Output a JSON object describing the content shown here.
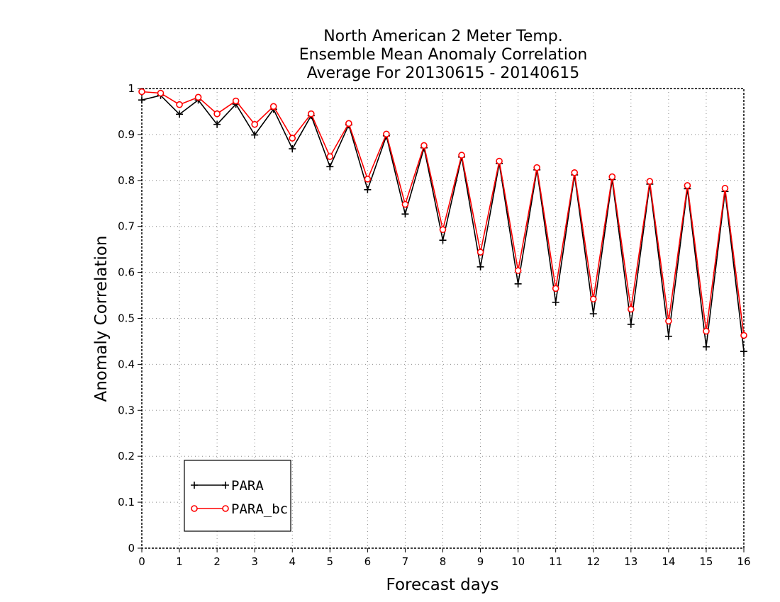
{
  "chart_data": {
    "type": "line",
    "title": [
      "North American 2 Meter Temp.",
      "Ensemble Mean Anomaly Correlation",
      "Average For 20130615 - 20140615"
    ],
    "xlabel": "Forecast days",
    "ylabel": "Anomaly Correlation",
    "xlim": [
      0,
      16
    ],
    "ylim": [
      0,
      1
    ],
    "x_ticks": [
      "0",
      "1",
      "2",
      "3",
      "4",
      "5",
      "6",
      "7",
      "8",
      "9",
      "10",
      "11",
      "12",
      "13",
      "14",
      "15",
      "16"
    ],
    "y_ticks": [
      "0",
      "0.1",
      "0.2",
      "0.3",
      "0.4",
      "0.5",
      "0.6",
      "0.7",
      "0.8",
      "0.9",
      "1"
    ],
    "grid": true,
    "legend_position": "bottom-left",
    "x": [
      0,
      0.5,
      1,
      1.5,
      2,
      2.5,
      3,
      3.5,
      4,
      4.5,
      5,
      5.5,
      6,
      6.5,
      7,
      7.5,
      8,
      8.5,
      9,
      9.5,
      10,
      10.5,
      11,
      11.5,
      12,
      12.5,
      13,
      13.5,
      14,
      14.5,
      15,
      15.5,
      16
    ],
    "series": [
      {
        "name": "PARA",
        "color": "#000000",
        "marker": "plus",
        "values": [
          0.975,
          0.985,
          0.944,
          0.975,
          0.922,
          0.966,
          0.899,
          0.955,
          0.869,
          0.941,
          0.83,
          0.921,
          0.78,
          0.897,
          0.727,
          0.871,
          0.67,
          0.851,
          0.612,
          0.837,
          0.575,
          0.823,
          0.535,
          0.812,
          0.51,
          0.802,
          0.487,
          0.792,
          0.461,
          0.782,
          0.438,
          0.776,
          0.428
        ]
      },
      {
        "name": "PARA_bc",
        "color": "#ff0000",
        "marker": "circle",
        "values": [
          0.993,
          0.99,
          0.965,
          0.981,
          0.945,
          0.973,
          0.922,
          0.961,
          0.892,
          0.945,
          0.852,
          0.924,
          0.803,
          0.901,
          0.748,
          0.876,
          0.693,
          0.855,
          0.644,
          0.842,
          0.604,
          0.828,
          0.565,
          0.817,
          0.542,
          0.808,
          0.52,
          0.798,
          0.494,
          0.789,
          0.472,
          0.783,
          0.463
        ]
      }
    ]
  }
}
